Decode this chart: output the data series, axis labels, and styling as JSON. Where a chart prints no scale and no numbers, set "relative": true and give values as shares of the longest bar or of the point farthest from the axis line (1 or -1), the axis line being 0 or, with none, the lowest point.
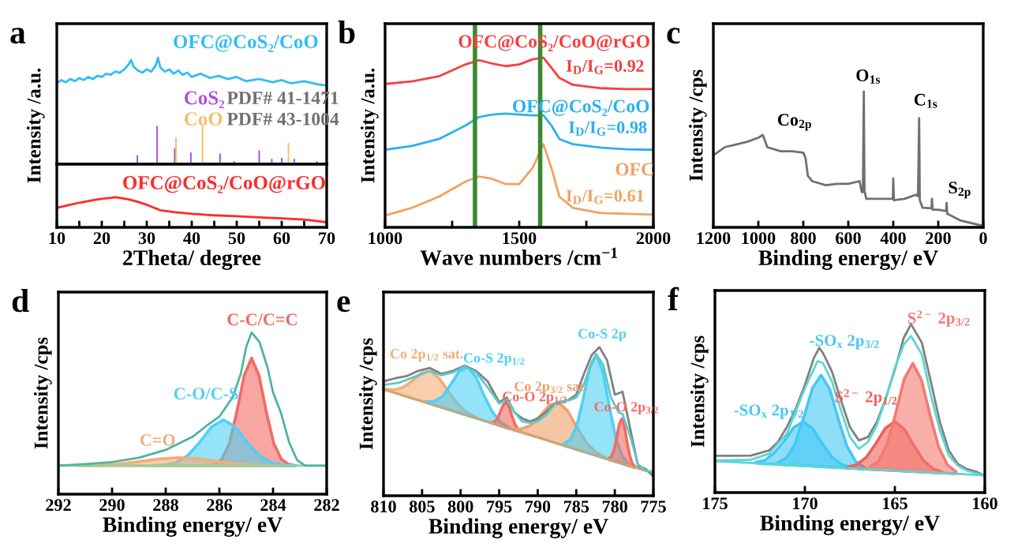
{
  "chart_data": [
    {
      "type": "line",
      "title": "a",
      "ylabel": "Intensity /a.u.",
      "relative": true,
      "tick_labels": false,
      "xlim": [
        10,
        70
      ],
      "annotations": [
        "PDF# 41-1471",
        "PDF# 43-1004"
      ],
      "series": [
        {
          "name": "OFC@CoS₂/CoO",
          "color": "#33bdf2",
          "x": [
            10,
            11,
            12,
            13,
            14,
            15,
            16,
            17,
            18,
            19,
            20,
            21,
            22,
            23,
            24,
            25,
            26,
            26.5,
            27,
            28,
            29,
            30,
            31,
            32,
            32.5,
            33,
            34,
            35,
            36,
            37,
            38,
            39,
            40,
            42,
            44,
            46,
            48,
            50,
            52,
            55,
            58,
            60,
            62,
            65,
            68,
            70
          ],
          "values": [
            0.76,
            0.79,
            0.77,
            0.8,
            0.78,
            0.81,
            0.79,
            0.82,
            0.8,
            0.83,
            0.82,
            0.85,
            0.84,
            0.87,
            0.86,
            0.89,
            0.94,
            0.98,
            0.92,
            0.88,
            0.86,
            0.89,
            0.87,
            0.93,
            1.0,
            0.91,
            0.87,
            0.89,
            0.85,
            0.88,
            0.84,
            0.86,
            0.82,
            0.85,
            0.81,
            0.83,
            0.8,
            0.82,
            0.78,
            0.8,
            0.77,
            0.79,
            0.76,
            0.78,
            0.75,
            0.74
          ]
        },
        {
          "name": "CoS₂",
          "type": "bar",
          "color": "#b04fe0",
          "x": [
            27.9,
            32.3,
            36.2,
            39.8,
            46.3,
            49.4,
            55.0,
            57.8,
            60.0,
            62.8,
            67.8
          ],
          "values": [
            0.085,
            0.36,
            0.15,
            0.11,
            0.1,
            0.03,
            0.13,
            0.05,
            0.06,
            0.05,
            0.03
          ]
        },
        {
          "name": "CoO",
          "type": "bar",
          "color": "#f0c070",
          "x": [
            36.5,
            42.4,
            61.5
          ],
          "values": [
            0.25,
            0.36,
            0.2
          ]
        }
      ]
    },
    {
      "type": "line",
      "xlabel": "2Theta/ degree",
      "relative": true,
      "tick_labels": "x",
      "xlim": [
        10,
        70
      ],
      "xticks": [
        10,
        {
          "value": 15,
          "label": null
        },
        20,
        {
          "value": 25,
          "label": null
        },
        30,
        {
          "value": 35,
          "label": null
        },
        40,
        {
          "value": 45,
          "label": null
        },
        50,
        {
          "value": 55,
          "label": null
        },
        60,
        {
          "value": 65,
          "label": null
        },
        70
      ],
      "series": [
        {
          "name": "OFC@CoS₂/CoO@rGO",
          "color": "#ff2a2a",
          "x": [
            10,
            12,
            15,
            18,
            20,
            22,
            23,
            24,
            26,
            28,
            30,
            33,
            36,
            40,
            45,
            50,
            55,
            60,
            65,
            70
          ],
          "values": [
            0.65,
            0.72,
            0.82,
            0.9,
            0.95,
            0.98,
            1.0,
            0.98,
            0.93,
            0.85,
            0.75,
            0.57,
            0.51,
            0.45,
            0.4,
            0.37,
            0.33,
            0.3,
            0.26,
            0.17
          ]
        }
      ]
    },
    {
      "type": "line",
      "title": "b",
      "xlabel": "Wave numbers /cm$^{−1}$",
      "ylabel": "Intensity /a.u.",
      "relative": true,
      "tick_labels": "x",
      "xlim": [
        1000,
        2000
      ],
      "xticks": [
        1000,
        {
          "value": 1250,
          "label": null
        },
        1500,
        {
          "value": 1750,
          "label": null
        },
        2000
      ],
      "x": [
        1000,
        1100,
        1200,
        1300,
        1350,
        1400,
        1450,
        1500,
        1550,
        1590,
        1620,
        1650,
        1700,
        1800,
        1900,
        2000
      ],
      "ref_lines": [
        {
          "axis": "x",
          "value": 1335,
          "color": "#3a8a2e"
        },
        {
          "axis": "x",
          "value": 1578,
          "color": "#3a8a2e"
        }
      ],
      "annotations": [
        "I$_{D}$/I$_{G}$=0.92",
        "I$_{D}$/I$_{G}$=0.98",
        "I$_{D}$/I$_{G}$=0.61"
      ],
      "series": [
        {
          "name": "OFC@CoS₂/CoO@rGO",
          "color": "#f44040",
          "values": [
            0.845,
            0.86,
            0.89,
            0.96,
            0.985,
            0.965,
            0.95,
            0.96,
            0.99,
            1.0,
            0.94,
            0.88,
            0.84,
            0.82,
            0.815,
            0.815
          ]
        },
        {
          "name": "OFC@CoS₂/CoO",
          "color": "#2ab0f0",
          "values": [
            0.457,
            0.48,
            0.52,
            0.6,
            0.65,
            0.665,
            0.67,
            0.665,
            0.66,
            0.66,
            0.6,
            0.52,
            0.49,
            0.47,
            0.46,
            0.457
          ]
        },
        {
          "name": "OFC",
          "color": "#f5a060",
          "values": [
            0.07,
            0.115,
            0.18,
            0.27,
            0.3,
            0.285,
            0.255,
            0.255,
            0.35,
            0.49,
            0.35,
            0.18,
            0.115,
            0.085,
            0.08,
            0.075
          ]
        }
      ]
    },
    {
      "type": "line",
      "title": "c",
      "xlabel": "Binding energy/ eV",
      "ylabel": "Intensity /cps",
      "relative": true,
      "tick_labels": "x",
      "xlim": [
        1200,
        0
      ],
      "xticks": [
        1200,
        1000,
        800,
        600,
        400,
        200,
        0
      ],
      "annotations": [
        {
          "text": "Co$_{2p}$",
          "x": 780,
          "y": 0.55
        },
        {
          "text": "O$_{1s}$",
          "x": 531,
          "y": 1.0
        },
        {
          "text": "C$_{1s}$",
          "x": 285,
          "y": 0.805
        },
        {
          "text": "S$_{2p}$",
          "x": 163,
          "y": 0.18
        }
      ],
      "series": [
        {
          "color": "#707070",
          "x": [
            1200,
            1150,
            1100,
            1050,
            1000,
            980,
            960,
            900,
            850,
            800,
            790,
            780,
            760,
            700,
            650,
            600,
            550,
            540,
            535,
            531,
            528,
            520,
            450,
            402,
            400,
            397,
            350,
            300,
            290,
            285,
            282,
            270,
            230,
            228,
            225,
            200,
            165,
            163,
            160,
            100,
            0
          ],
          "values": [
            0.53,
            0.59,
            0.61,
            0.63,
            0.66,
            0.68,
            0.59,
            0.56,
            0.56,
            0.55,
            0.51,
            0.38,
            0.34,
            0.31,
            0.32,
            0.32,
            0.34,
            0.26,
            0.26,
            1.0,
            0.27,
            0.21,
            0.21,
            0.21,
            0.36,
            0.2,
            0.21,
            0.24,
            0.23,
            0.805,
            0.2,
            0.145,
            0.14,
            0.21,
            0.13,
            0.13,
            0.12,
            0.18,
            0.1,
            0.05,
            0.01
          ]
        }
      ]
    },
    {
      "type": "area",
      "title": "d",
      "xlabel": "Binding energy/ eV",
      "ylabel": "Intensity /cps",
      "relative": true,
      "tick_labels": "x",
      "xlim": [
        292,
        282
      ],
      "xticks": [
        292,
        290,
        288,
        286,
        284,
        282
      ],
      "series": [
        {
          "name": "C-C/C=C",
          "color": "#f26b63",
          "x": [
            283.15,
            283.425,
            283.7,
            283.975,
            284.25,
            284.525,
            284.8,
            285.075,
            285.35,
            285.625,
            285.9,
            286.175,
            286.45
          ],
          "values": [
            0.177,
            0.185,
            0.218,
            0.316,
            0.509,
            0.735,
            0.841,
            0.735,
            0.509,
            0.316,
            0.218,
            0.185,
            0.177
          ]
        },
        {
          "name": "C-O/C-S",
          "color": "#4fd0f5",
          "x": [
            283.15,
            283.6,
            284.05,
            284.5,
            284.95,
            285.4,
            285.85,
            286.3,
            286.75,
            287.2,
            287.65,
            288.1,
            288.55
          ],
          "values": [
            0.177,
            0.18,
            0.194,
            0.236,
            0.318,
            0.415,
            0.46,
            0.415,
            0.318,
            0.236,
            0.194,
            0.18,
            0.177
          ]
        },
        {
          "name": "C=O",
          "color": "#f2ae78",
          "x": [
            283.75,
            284.5,
            285.25,
            286.0,
            286.75,
            287.5,
            288.25,
            289.0,
            289.75,
            290.5,
            291.25
          ],
          "values": [
            0.177,
            0.179,
            0.187,
            0.201,
            0.218,
            0.226,
            0.218,
            0.201,
            0.187,
            0.179,
            0.177
          ]
        },
        {
          "type": "line",
          "color": "#8fd3a0",
          "x": [
            292,
            282
          ],
          "values": [
            0.176,
            0.176
          ]
        },
        {
          "type": "line",
          "color": "#4fb3a9",
          "x": [
            292,
            291,
            290,
            289,
            288,
            287,
            286.5,
            286,
            285.5,
            285.2,
            285,
            284.8,
            284.5,
            284.2,
            284,
            283.7,
            283.4,
            283.1,
            282.8,
            282
          ],
          "values": [
            0.176,
            0.186,
            0.198,
            0.225,
            0.274,
            0.355,
            0.42,
            0.48,
            0.6,
            0.746,
            0.91,
            1.0,
            0.94,
            0.78,
            0.63,
            0.5,
            0.32,
            0.21,
            0.176,
            0.176
          ]
        }
      ]
    },
    {
      "type": "area",
      "title": "e",
      "xlabel": "Binding energy/ eV",
      "ylabel": "Intensity /cps",
      "relative": true,
      "tick_labels": "x",
      "xlim": [
        810,
        775
      ],
      "xticks": [
        810,
        805,
        800,
        795,
        790,
        785,
        780,
        775
      ],
      "series": [
        {
          "name": "Co 2p$_{1/2}$ sat.",
          "color": "#f2ae78",
          "x": [
            797.9,
            799.1,
            800.3,
            801.5,
            802.7,
            803.9,
            805.1,
            806.3,
            807.5,
            808.7,
            809.9
          ],
          "values": [
            0.525,
            0.557,
            0.611,
            0.695,
            0.785,
            0.838,
            0.824,
            0.772,
            0.728,
            0.712,
            0.718
          ]
        },
        {
          "name": "Co-S 2p$_{1/2}$",
          "color": "#4fd0f5",
          "x": [
            793.7,
            794.8,
            795.9,
            797.0,
            798.0,
            799.1,
            800.2,
            801.3,
            802.3,
            803.4,
            804.5
          ],
          "values": [
            0.459,
            0.496,
            0.565,
            0.678,
            0.799,
            0.865,
            0.835,
            0.748,
            0.669,
            0.635,
            0.633
          ]
        },
        {
          "name": "Co-O 2p$_{1/2}$",
          "color": "#f26b63",
          "x": [
            792.2,
            792.58,
            792.96,
            793.34,
            793.72,
            794.1,
            794.48,
            794.86,
            795.24,
            795.62,
            796.0
          ],
          "values": [
            0.432,
            0.448,
            0.481,
            0.537,
            0.598,
            0.629,
            0.61,
            0.562,
            0.518,
            0.497,
            0.493
          ]
        },
        {
          "name": "Co 2p$_{3/2}$ sat.",
          "color": "#eea06a",
          "x": [
            781.3,
            782.5,
            783.7,
            784.9,
            786.1,
            787.3,
            788.5,
            789.7,
            790.9,
            792.1,
            793.3
          ],
          "values": [
            0.258,
            0.294,
            0.357,
            0.459,
            0.569,
            0.629,
            0.608,
            0.536,
            0.474,
            0.449,
            0.451
          ]
        },
        {
          "name": "Co-S 2p",
          "color": "#4fd0f5",
          "x": [
            778.2,
            779.04,
            779.88,
            780.72,
            781.56,
            782.4,
            783.24,
            784.08,
            784.92,
            785.76,
            786.6
          ],
          "values": [
            0.216,
            0.269,
            0.391,
            0.604,
            0.836,
            0.95,
            0.863,
            0.657,
            0.472,
            0.378,
            0.351
          ]
        },
        {
          "name": "Co-O 2p$_{3/2}$",
          "color": "#f26b63",
          "x": [
            777.4,
            777.74,
            778.08,
            778.42,
            778.76,
            779.1,
            779.44,
            779.78,
            780.12,
            780.46,
            780.8
          ],
          "values": [
            0.196,
            0.218,
            0.272,
            0.364,
            0.468,
            0.517,
            0.479,
            0.386,
            0.305,
            0.262,
            0.251
          ]
        },
        {
          "type": "line",
          "color": "#c8a878",
          "x": [
            810,
            775
          ],
          "values": [
            0.716,
            0.151
          ]
        },
        {
          "type": "line",
          "color": "#808080",
          "x": [
            810,
            808.5,
            807,
            805.5,
            804,
            802.5,
            801,
            799.5,
            798,
            796.5,
            795,
            794,
            793,
            792,
            791,
            790,
            789,
            788,
            787,
            786,
            785,
            784,
            783,
            782,
            781,
            780,
            779,
            778,
            777,
            776,
            775
          ],
          "values": [
            0.77,
            0.79,
            0.805,
            0.84,
            0.86,
            0.82,
            0.84,
            0.875,
            0.84,
            0.77,
            0.63,
            0.66,
            0.56,
            0.52,
            0.5,
            0.52,
            0.56,
            0.61,
            0.63,
            0.645,
            0.68,
            0.82,
            0.947,
            1.0,
            0.91,
            0.68,
            0.7,
            0.45,
            0.2,
            0.18,
            0.13
          ]
        },
        {
          "type": "line",
          "color": "#5cc9c9",
          "x": [
            810,
            808,
            806,
            804,
            802.5,
            801,
            799.5,
            798,
            796.5,
            795,
            794,
            793,
            792,
            791,
            790,
            789,
            787.5,
            786,
            785,
            784,
            783,
            782.4,
            781.5,
            780.5,
            779.5,
            779,
            778,
            777,
            776,
            775
          ],
          "values": [
            0.745,
            0.76,
            0.8,
            0.84,
            0.81,
            0.83,
            0.87,
            0.83,
            0.73,
            0.62,
            0.65,
            0.56,
            0.5,
            0.49,
            0.5,
            0.54,
            0.63,
            0.64,
            0.66,
            0.75,
            0.9,
            0.95,
            0.88,
            0.66,
            0.56,
            0.55,
            0.4,
            0.21,
            0.17,
            0.16
          ]
        }
      ]
    },
    {
      "type": "area",
      "title": "f",
      "xlabel": "Binding energy/ eV",
      "ylabel": "Intensity /cps",
      "relative": true,
      "tick_labels": "x",
      "xlim": [
        175,
        160
      ],
      "xticks": [
        175,
        170,
        165,
        160
      ],
      "series": [
        {
          "name": "-SO$_{x}$ 2p$_{1/2}$",
          "color": "#45c8f5",
          "x": [
            167.45,
            167.98,
            168.51,
            169.04,
            169.57,
            170.1,
            170.63,
            171.16,
            171.69,
            172.22,
            172.75
          ],
          "values": [
            0.15,
            0.168,
            0.213,
            0.292,
            0.38,
            0.422,
            0.386,
            0.304,
            0.238,
            0.192,
            0.18
          ]
        },
        {
          "name": "-SO$_{x}$ 2p$_{3/2}$",
          "color": "#45c8f5",
          "x": [
            166.7,
            167.18,
            167.66,
            168.14,
            168.62,
            169.1,
            169.58,
            170.06,
            170.54,
            171.02,
            171.5
          ],
          "values": [
            0.151,
            0.185,
            0.275,
            0.436,
            0.615,
            0.697,
            0.62,
            0.447,
            0.291,
            0.207,
            0.178
          ]
        },
        {
          "name": "S$^{2−}$ 2p$_{1/2}$",
          "color": "#ec625a",
          "x": [
            162.35,
            162.88,
            163.41,
            163.94,
            164.47,
            165.0,
            165.53,
            166.06,
            166.59,
            167.12,
            167.65
          ],
          "values": [
            0.121,
            0.142,
            0.191,
            0.279,
            0.376,
            0.422,
            0.382,
            0.291,
            0.209,
            0.166,
            0.151
          ]
        },
        {
          "name": "S$^{2−}$ 2p$_{3/2}$",
          "color": "#f47a72",
          "x": [
            161.6,
            162.08,
            162.56,
            163.04,
            163.52,
            164.0,
            164.48,
            164.96,
            165.44,
            165.92,
            166.4
          ],
          "values": [
            0.124,
            0.165,
            0.269,
            0.458,
            0.669,
            0.767,
            0.674,
            0.469,
            0.286,
            0.186,
            0.151
          ]
        },
        {
          "type": "line",
          "color": "#5ad6d6",
          "x": [
            175,
            160
          ],
          "values": [
            0.1875,
            0.103
          ]
        },
        {
          "type": "line",
          "color": "#808080",
          "x": [
            175,
            174,
            173,
            172,
            171.5,
            171,
            170.5,
            170,
            169.5,
            169.2,
            169,
            168.5,
            168,
            167.5,
            167,
            166.5,
            166,
            165.5,
            165,
            164.5,
            164.1,
            163.5,
            163,
            162.5,
            162,
            161.5,
            161,
            160.5,
            160
          ],
          "values": [
            0.219,
            0.219,
            0.22,
            0.25,
            0.3,
            0.39,
            0.5,
            0.64,
            0.8,
            0.86,
            0.83,
            0.72,
            0.55,
            0.39,
            0.31,
            0.33,
            0.42,
            0.56,
            0.73,
            0.92,
            1.0,
            0.89,
            0.66,
            0.42,
            0.25,
            0.17,
            0.14,
            0.125,
            0.1
          ]
        },
        {
          "type": "line",
          "color": "#5ad6d6",
          "x": [
            175,
            173,
            172,
            171,
            170,
            169.3,
            169,
            168.5,
            168,
            167.5,
            167,
            166.5,
            166,
            165.5,
            165,
            164.5,
            164.1,
            163.5,
            163,
            162.5,
            162,
            161.5,
            161,
            160
          ],
          "values": [
            0.19,
            0.195,
            0.23,
            0.35,
            0.62,
            0.78,
            0.77,
            0.66,
            0.49,
            0.33,
            0.26,
            0.3,
            0.4,
            0.56,
            0.74,
            0.88,
            0.93,
            0.82,
            0.58,
            0.37,
            0.22,
            0.16,
            0.13,
            0.1
          ]
        }
      ]
    }
  ]
}
